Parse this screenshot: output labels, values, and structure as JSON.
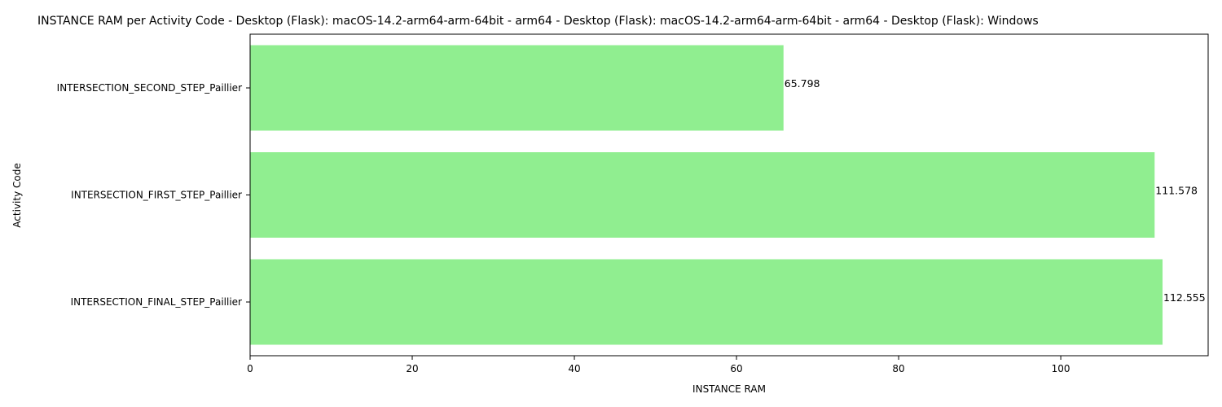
{
  "chart_data": {
    "type": "bar",
    "orientation": "horizontal",
    "title": "INSTANCE RAM per Activity Code - Desktop (Flask): macOS-14.2-arm64-arm-64bit - arm64 - Desktop (Flask): macOS-14.2-arm64-arm-64bit - arm64 - Desktop (Flask): Windows",
    "xlabel": "INSTANCE RAM",
    "ylabel": "Activity Code",
    "categories": [
      "INTERSECTION_SECOND_STEP_Paillier",
      "INTERSECTION_FIRST_STEP_Paillier",
      "INTERSECTION_FINAL_STEP_Paillier"
    ],
    "values": [
      65.798,
      111.578,
      112.555
    ],
    "data_labels": [
      "65.798",
      "111.578",
      "112.555"
    ],
    "xlim": [
      0,
      118.18
    ],
    "xticks": [
      0,
      20,
      40,
      60,
      80,
      100
    ],
    "xtick_labels": [
      "0",
      "20",
      "40",
      "60",
      "80",
      "100"
    ],
    "grid": false,
    "bar_color": "#90ee90"
  }
}
